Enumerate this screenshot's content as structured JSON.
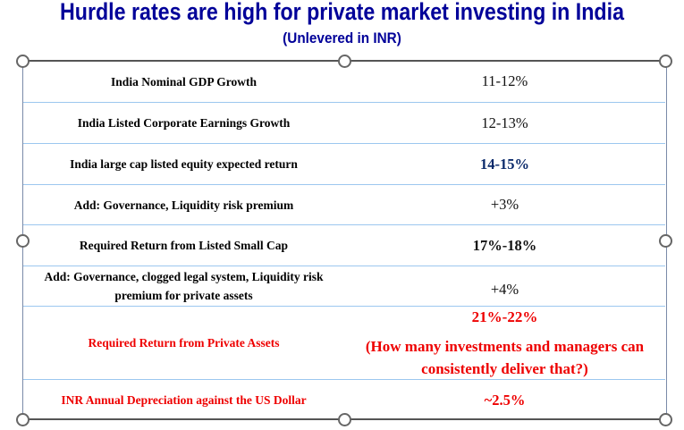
{
  "title": "Hurdle rates are high for private market investing in India",
  "subtitle": "(Unlevered in INR)",
  "rows": [
    {
      "label": "India Nominal GDP Growth",
      "value": "11-12%"
    },
    {
      "label": "India Listed Corporate Earnings Growth",
      "value": "12-13%"
    },
    {
      "label": "India large cap listed equity expected return",
      "value": "14-15%"
    },
    {
      "label": "Add: Governance, Liquidity  risk premium",
      "value": "+3%"
    },
    {
      "label": "Required Return from Listed Small Cap",
      "value": "17%-18%"
    },
    {
      "label": "Add: Governance, clogged legal system, Liquidity risk premium for  private assets",
      "value": "+4%"
    },
    {
      "label": "Required Return from Private Assets",
      "value": "21%-22%",
      "note": "(How many investments and managers can consistently deliver that?)"
    },
    {
      "label": "INR Annual Depreciation against the US Dollar",
      "value": "~2.5%"
    }
  ],
  "colors": {
    "title": "#000099",
    "highlight": "#ee0000",
    "navy": "#0b2a6b"
  }
}
